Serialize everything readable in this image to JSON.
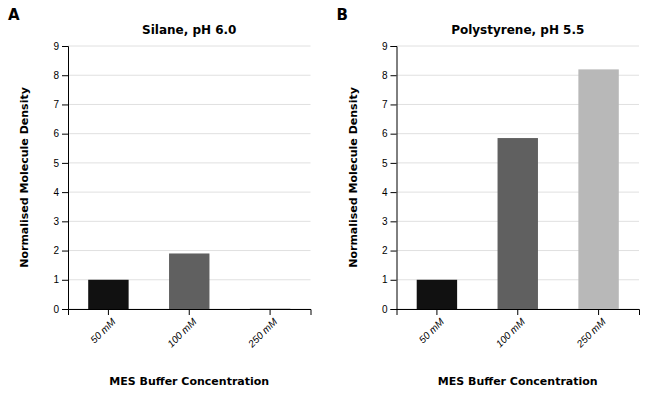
{
  "chart_data": [
    {
      "type": "bar",
      "label": "A",
      "title": "Silane, pH 6.0",
      "categories": [
        "50 mM",
        "100 mM",
        "250 mM"
      ],
      "values": [
        1.0,
        1.9,
        0.02
      ],
      "colors": [
        "#111111",
        "#606060",
        "#b0b0b0"
      ],
      "xlabel": "MES Buffer Concentration",
      "ylabel": "Normalised Molecule Density",
      "ylim": [
        0,
        9
      ],
      "yticks": [
        0,
        1,
        2,
        3,
        4,
        5,
        6,
        7,
        8,
        9
      ],
      "grid": true
    },
    {
      "type": "bar",
      "label": "B",
      "title": "Polystyrene, pH 5.5",
      "categories": [
        "50 mM",
        "100 mM",
        "250 mM"
      ],
      "values": [
        1.0,
        5.85,
        8.2
      ],
      "colors": [
        "#111111",
        "#606060",
        "#b8b8b8"
      ],
      "xlabel": "MES Buffer Concentration",
      "ylabel": "Normalised Molecule Density",
      "ylim": [
        0,
        9
      ],
      "yticks": [
        0,
        1,
        2,
        3,
        4,
        5,
        6,
        7,
        8,
        9
      ],
      "grid": true
    }
  ]
}
